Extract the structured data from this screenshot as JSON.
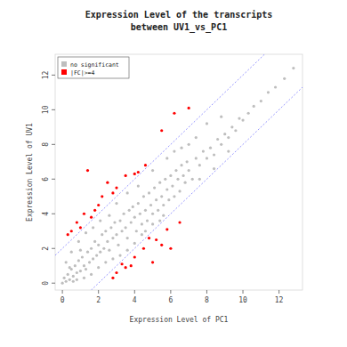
{
  "chart_data": {
    "type": "scatter",
    "title": "Expression Level of the transcripts",
    "subtitle": "between UV1_vs_PC1",
    "x_label": "Expression Level of PC1",
    "y_label": "Expression Level of UV1",
    "xlim": [
      -0.4,
      13.3
    ],
    "ylim": [
      -0.4,
      13.2
    ],
    "xticks": [
      0,
      2,
      4,
      6,
      8,
      10,
      12
    ],
    "yticks": [
      0,
      2,
      4,
      6,
      8,
      10,
      12
    ],
    "grid": false,
    "legend": "top-left",
    "reference_lines": [
      2,
      -2
    ],
    "series": [
      {
        "name": "no significant",
        "color": "#bebebe",
        "marker": "circle",
        "x": [
          0,
          0.1,
          0.2,
          0.3,
          0.4,
          0.5,
          0.6,
          0.7,
          0.8,
          0.9,
          1.0,
          1.1,
          1.2,
          1.3,
          1.4,
          1.5,
          1.6,
          1.7,
          1.8,
          1.9,
          2.0,
          2.1,
          2.2,
          2.3,
          2.4,
          2.5,
          2.6,
          2.7,
          2.8,
          2.9,
          3.0,
          3.1,
          3.2,
          3.3,
          3.4,
          3.5,
          3.6,
          3.7,
          3.8,
          3.9,
          4.0,
          4.1,
          4.2,
          4.3,
          4.4,
          4.5,
          4.6,
          4.7,
          4.8,
          4.9,
          5.0,
          5.1,
          5.2,
          5.3,
          5.4,
          5.5,
          5.6,
          5.7,
          5.8,
          5.9,
          6.0,
          6.1,
          6.2,
          6.3,
          6.4,
          6.5,
          6.6,
          6.7,
          6.8,
          6.9,
          7.0,
          7.2,
          7.4,
          7.6,
          7.8,
          8.0,
          8.2,
          8.4,
          8.6,
          8.8,
          9.0,
          9.2,
          9.4,
          9.6,
          9.8,
          10.0,
          10.3,
          10.6,
          11.0,
          11.4,
          11.8,
          12.3,
          12.8,
          0.2,
          0.5,
          0.9,
          1.3,
          1.7,
          2.1,
          0.8,
          1.2,
          1.6,
          2.0,
          2.4,
          2.8,
          3.2,
          3.6,
          4.0,
          4.4,
          5.0,
          5.6,
          3.0,
          3.6,
          4.2,
          5.0,
          5.8,
          6.6,
          7.4,
          6.2,
          7.0,
          8.0,
          8.8,
          7.6,
          8.4,
          9.2,
          0.4,
          0.6,
          1.0,
          2.6,
          4.6,
          5.4
        ],
        "values": [
          0,
          0.3,
          0.1,
          0.5,
          0.2,
          0.8,
          0.4,
          1.0,
          0.6,
          1.3,
          0.7,
          1.5,
          1.0,
          0.8,
          1.8,
          1.2,
          2.0,
          1.4,
          2.4,
          1.6,
          2.2,
          1.8,
          2.8,
          2.0,
          3.0,
          2.4,
          1.9,
          3.2,
          2.6,
          3.5,
          2.8,
          2.2,
          3.6,
          3.0,
          4.0,
          3.2,
          2.6,
          4.2,
          3.5,
          4.4,
          3.8,
          3.0,
          4.6,
          4.0,
          3.4,
          5.0,
          4.2,
          3.6,
          5.2,
          4.5,
          4.0,
          5.5,
          4.8,
          4.2,
          5.8,
          5.0,
          4.5,
          6.0,
          5.4,
          4.8,
          6.2,
          5.6,
          5.0,
          6.5,
          6.0,
          5.3,
          6.8,
          6.2,
          5.8,
          7.0,
          6.5,
          6.0,
          7.2,
          6.8,
          7.6,
          7.2,
          7.8,
          7.4,
          8.3,
          8.0,
          8.6,
          8.4,
          9.0,
          8.8,
          9.5,
          9.4,
          9.8,
          10.2,
          10.5,
          11.0,
          11.3,
          11.8,
          12.4,
          1.2,
          1.8,
          2.4,
          2.9,
          3.2,
          3.6,
          0.2,
          0.3,
          0.5,
          0.9,
          1.2,
          1.4,
          1.6,
          1.9,
          2.3,
          2.8,
          3.4,
          3.9,
          4.6,
          5.2,
          5.6,
          6.5,
          7.2,
          7.8,
          8.4,
          7.6,
          8.0,
          9.2,
          9.6,
          6.0,
          6.6,
          7.6,
          0.9,
          0.1,
          1.9,
          3.9,
          3.0,
          3.6
        ]
      },
      {
        "name": "|FC|>=4",
        "color": "#ff0000",
        "marker": "circle",
        "x": [
          0.5,
          0.8,
          1.2,
          1.4,
          1.6,
          1.8,
          2.0,
          2.2,
          2.5,
          3.0,
          3.5,
          4.2,
          4.6,
          4.0,
          5.5,
          6.2,
          7.0,
          0.3,
          1.0,
          2.8,
          3.0,
          3.5,
          3.8,
          4.0,
          4.5,
          5.0,
          5.2,
          5.5,
          5.8,
          6.0,
          6.5,
          3.3,
          4.8,
          2.8
        ],
        "values": [
          3.0,
          3.5,
          4.0,
          6.5,
          3.8,
          4.2,
          4.5,
          5.0,
          5.8,
          5.5,
          6.2,
          6.4,
          6.8,
          6.3,
          8.8,
          9.8,
          10.1,
          2.8,
          3.2,
          5.2,
          0.6,
          0.9,
          1.0,
          1.5,
          2.0,
          1.2,
          2.5,
          2.2,
          3.1,
          2.0,
          3.5,
          1.1,
          2.6,
          0.3
        ]
      }
    ]
  }
}
